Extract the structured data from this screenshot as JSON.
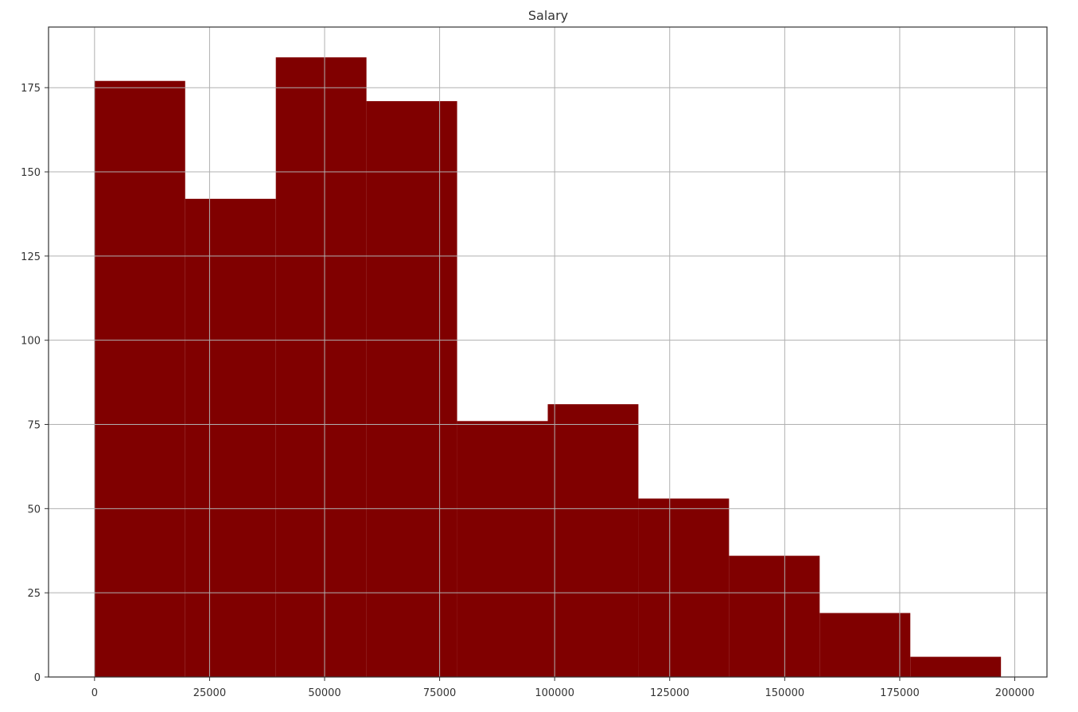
{
  "chart_data": {
    "type": "bar",
    "title": "Salary",
    "xlabel": "",
    "ylabel": "",
    "bin_edges": [
      0,
      19700,
      39400,
      59100,
      78800,
      98500,
      118200,
      137900,
      157600,
      177300,
      197000
    ],
    "values": [
      177,
      142,
      184,
      171,
      76,
      81,
      53,
      36,
      19,
      6
    ],
    "xlim": [
      -10000,
      207000
    ],
    "ylim": [
      0,
      193
    ],
    "x_ticks": [
      0,
      25000,
      50000,
      75000,
      100000,
      125000,
      150000,
      175000,
      200000
    ],
    "x_tick_labels": [
      "0",
      "25000",
      "50000",
      "75000",
      "100000",
      "125000",
      "150000",
      "175000",
      "200000"
    ],
    "y_ticks": [
      0,
      25,
      50,
      75,
      100,
      125,
      150,
      175
    ],
    "y_tick_labels": [
      "0",
      "25",
      "50",
      "75",
      "100",
      "125",
      "150",
      "175"
    ],
    "grid": true,
    "bar_color": "#800000",
    "grid_color": "#b0b0b0",
    "axis_color": "#333333"
  }
}
